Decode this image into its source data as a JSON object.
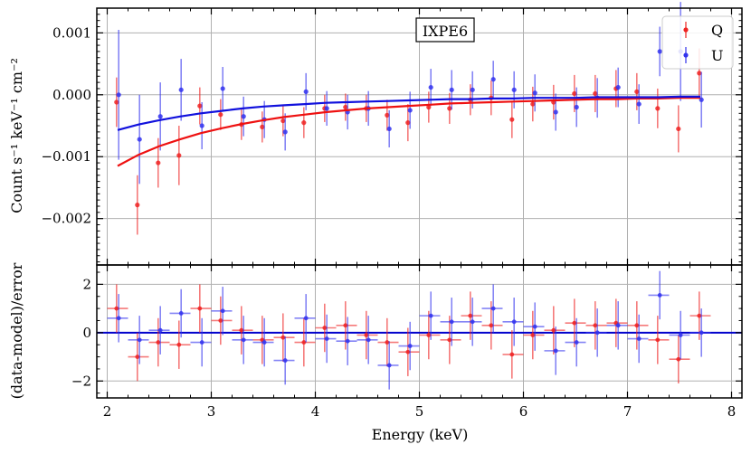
{
  "chart_data": [
    {
      "type": "scatter",
      "panel": "top",
      "title": "IXPE6",
      "xlabel": "",
      "ylabel": "Count s⁻¹ keV⁻¹ cm⁻²",
      "xlim": [
        1.9,
        8.1
      ],
      "ylim": [
        -0.00275,
        0.0014
      ],
      "yticks": [
        -0.002,
        -0.001,
        0.0,
        0.001
      ],
      "ytick_labels": [
        "−0.002",
        "−0.001",
        "0.000",
        "0.001"
      ],
      "grid": true,
      "legend": "top-right",
      "series": [
        {
          "name": "Q",
          "color": "#ee2222",
          "x": [
            2.1,
            2.3,
            2.5,
            2.7,
            2.9,
            3.1,
            3.3,
            3.5,
            3.7,
            3.9,
            4.1,
            4.3,
            4.5,
            4.7,
            4.9,
            5.1,
            5.3,
            5.5,
            5.7,
            5.9,
            6.1,
            6.3,
            6.5,
            6.7,
            6.9,
            7.1,
            7.3,
            7.5,
            7.7
          ],
          "y": [
            -0.00012,
            -0.00178,
            -0.0011,
            -0.00098,
            -0.00018,
            -0.00032,
            -0.00048,
            -0.00052,
            -0.00042,
            -0.00045,
            -0.00022,
            -0.0002,
            -0.00022,
            -0.00033,
            -0.00045,
            -0.0002,
            -0.00022,
            -8e-05,
            -5e-05,
            -0.0004,
            -0.00015,
            -0.00012,
            2e-05,
            2e-05,
            0.0001,
            5e-05,
            -0.00022,
            -0.00055,
            0.00035
          ],
          "yerr": [
            0.0004,
            0.00048,
            0.0004,
            0.00048,
            0.0003,
            0.00025,
            0.00025,
            0.00025,
            0.00025,
            0.00025,
            0.00022,
            0.00022,
            0.00022,
            0.00025,
            0.0003,
            0.00025,
            0.00025,
            0.00025,
            0.00028,
            0.0003,
            0.00028,
            0.00028,
            0.0003,
            0.0003,
            0.0003,
            0.0003,
            0.00032,
            0.00038,
            0.0004
          ]
        },
        {
          "name": "U",
          "color": "#3333ee",
          "x": [
            2.1,
            2.3,
            2.5,
            2.7,
            2.9,
            3.1,
            3.3,
            3.5,
            3.7,
            3.9,
            4.1,
            4.3,
            4.5,
            4.7,
            4.9,
            5.1,
            5.3,
            5.5,
            5.7,
            5.9,
            6.1,
            6.3,
            6.5,
            6.7,
            6.9,
            7.1,
            7.3,
            7.5,
            7.7
          ],
          "y": [
            0.0,
            -0.00072,
            -0.00035,
            8e-05,
            -0.0005,
            0.0001,
            -0.00035,
            -0.0004,
            -0.0006,
            5e-05,
            -0.00022,
            -0.00028,
            -0.00022,
            -0.00055,
            -0.00025,
            0.00012,
            8e-05,
            8e-05,
            0.00025,
            8e-05,
            3e-05,
            -0.00028,
            -0.0002,
            -5e-05,
            0.00012,
            -0.00015,
            0.0007,
            0.0007,
            -8e-05
          ],
          "yerr": [
            0.00105,
            0.00072,
            0.00055,
            0.0005,
            0.00038,
            0.00035,
            0.00032,
            0.0003,
            0.0003,
            0.0003,
            0.00028,
            0.00028,
            0.00028,
            0.0003,
            0.0003,
            0.0003,
            0.00032,
            0.0003,
            0.0003,
            0.0003,
            0.0003,
            0.0003,
            0.00032,
            0.00032,
            0.00032,
            0.00032,
            0.0004,
            0.0008,
            0.00045
          ]
        }
      ],
      "model_curves": [
        {
          "name": "Q model",
          "color": "#ee1111",
          "x": [
            2.1,
            2.3,
            2.5,
            2.7,
            2.9,
            3.1,
            3.3,
            3.5,
            3.7,
            3.9,
            4.1,
            4.3,
            4.5,
            4.7,
            4.9,
            5.1,
            5.3,
            5.5,
            5.7,
            5.9,
            6.1,
            6.3,
            6.5,
            6.7,
            6.9,
            7.1,
            7.3,
            7.5,
            7.7
          ],
          "y": [
            -0.00115,
            -0.00097,
            -0.00083,
            -0.00072,
            -0.00062,
            -0.00054,
            -0.00047,
            -0.00041,
            -0.00036,
            -0.00032,
            -0.00028,
            -0.00025,
            -0.00022,
            -0.0002,
            -0.00018,
            -0.00016,
            -0.00014,
            -0.00013,
            -0.00012,
            -0.00011,
            -0.0001,
            -9e-05,
            -8e-05,
            -7e-05,
            -7e-05,
            -6e-05,
            -6e-05,
            -5e-05,
            -5e-05
          ]
        },
        {
          "name": "U model",
          "color": "#1111dd",
          "x": [
            2.1,
            2.3,
            2.5,
            2.7,
            2.9,
            3.1,
            3.3,
            3.5,
            3.7,
            3.9,
            4.1,
            4.3,
            4.5,
            4.7,
            4.9,
            5.1,
            5.3,
            5.5,
            5.7,
            5.9,
            6.1,
            6.3,
            6.5,
            6.7,
            6.9,
            7.1,
            7.3,
            7.5,
            7.7
          ],
          "y": [
            -0.00057,
            -0.00048,
            -0.00041,
            -0.00035,
            -0.0003,
            -0.00026,
            -0.00022,
            -0.00019,
            -0.00017,
            -0.00015,
            -0.00013,
            -0.00012,
            -0.00011,
            -0.0001,
            -9e-05,
            -8e-05,
            -7e-05,
            -7e-05,
            -6e-05,
            -6e-05,
            -5e-05,
            -5e-05,
            -5e-05,
            -4e-05,
            -4e-05,
            -4e-05,
            -4e-05,
            -3e-05,
            -3e-05
          ]
        }
      ]
    },
    {
      "type": "scatter",
      "panel": "bottom",
      "xlabel": "Energy (keV)",
      "ylabel": "(data-model)/error",
      "xlim": [
        1.9,
        8.1
      ],
      "ylim": [
        -2.7,
        2.8
      ],
      "xticks": [
        2,
        3,
        4,
        5,
        6,
        7,
        8
      ],
      "xtick_labels": [
        "2",
        "3",
        "4",
        "5",
        "6",
        "7",
        "8"
      ],
      "yticks": [
        -2,
        0,
        2
      ],
      "ytick_labels": [
        "−2",
        "0",
        "2"
      ],
      "xerr": 0.1,
      "grid": true,
      "zero_line_color": "#0000cc",
      "series": [
        {
          "name": "Q",
          "color": "#ee2222",
          "x": [
            2.1,
            2.3,
            2.5,
            2.7,
            2.9,
            3.1,
            3.3,
            3.5,
            3.7,
            3.9,
            4.1,
            4.3,
            4.5,
            4.7,
            4.9,
            5.1,
            5.3,
            5.5,
            5.7,
            5.9,
            6.1,
            6.3,
            6.5,
            6.7,
            6.9,
            7.1,
            7.3,
            7.5,
            7.7
          ],
          "y": [
            1.0,
            -1.0,
            -0.4,
            -0.5,
            1.0,
            0.5,
            0.1,
            -0.3,
            -0.2,
            -0.4,
            0.2,
            0.3,
            -0.1,
            -0.4,
            -0.8,
            -0.1,
            -0.3,
            0.7,
            0.3,
            -0.9,
            -0.1,
            0.1,
            0.4,
            0.3,
            0.4,
            0.3,
            -0.3,
            -1.1,
            0.7
          ],
          "yerr": 1.0
        },
        {
          "name": "U",
          "color": "#3333ee",
          "x": [
            2.1,
            2.3,
            2.5,
            2.7,
            2.9,
            3.1,
            3.3,
            3.5,
            3.7,
            3.9,
            4.1,
            4.3,
            4.5,
            4.7,
            4.9,
            5.1,
            5.3,
            5.5,
            5.7,
            5.9,
            6.1,
            6.3,
            6.5,
            6.7,
            6.9,
            7.1,
            7.3,
            7.5,
            7.7
          ],
          "y": [
            0.6,
            -0.3,
            0.1,
            0.8,
            -0.4,
            0.9,
            -0.3,
            -0.4,
            -1.15,
            0.6,
            -0.25,
            -0.35,
            -0.3,
            -1.35,
            -0.55,
            0.7,
            0.45,
            0.45,
            1.0,
            0.45,
            0.25,
            -0.75,
            -0.4,
            0.0,
            0.3,
            -0.25,
            1.55,
            -0.1,
            0.0
          ],
          "yerr": 1.0
        }
      ]
    }
  ]
}
